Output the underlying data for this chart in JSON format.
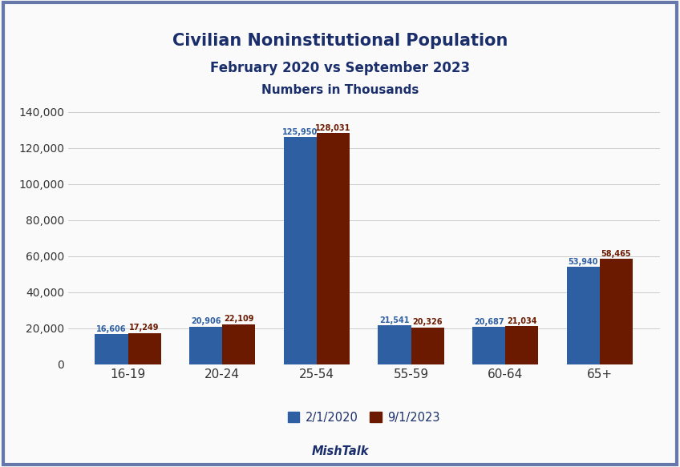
{
  "title_line1": "Civilian Noninstitutional Population",
  "title_line2": "February 2020 vs September 2023",
  "title_line3": "Numbers in Thousands",
  "categories": [
    "16-19",
    "20-24",
    "25-54",
    "55-59",
    "60-64",
    "65+"
  ],
  "values_2020": [
    16606,
    20906,
    125950,
    21541,
    20687,
    53940
  ],
  "values_2023": [
    17249,
    22109,
    128031,
    20326,
    21034,
    58465
  ],
  "labels_2020": [
    "16,606",
    "20,906",
    "125,950",
    "21,541",
    "20,687",
    "53,940"
  ],
  "labels_2023": [
    "17,249",
    "22,109",
    "128,031",
    "20,326",
    "21,034",
    "58,465"
  ],
  "color_2020": "#2E5FA3",
  "color_2023": "#6B1A00",
  "legend_2020": "2/1/2020",
  "legend_2023": "9/1/2023",
  "xlabel_bottom": "MishTalk",
  "ylim": [
    0,
    145000
  ],
  "yticks": [
    0,
    20000,
    40000,
    60000,
    80000,
    100000,
    120000,
    140000
  ],
  "background_color": "#FAFAFA",
  "border_color": "#6677AA",
  "title_color": "#1A2E6B",
  "bar_label_color_2020": "#2E5FA3",
  "bar_label_color_2023": "#6B1A00",
  "mishtalk_color": "#1A2E6B",
  "legend_text_color": "#1A2E6B"
}
